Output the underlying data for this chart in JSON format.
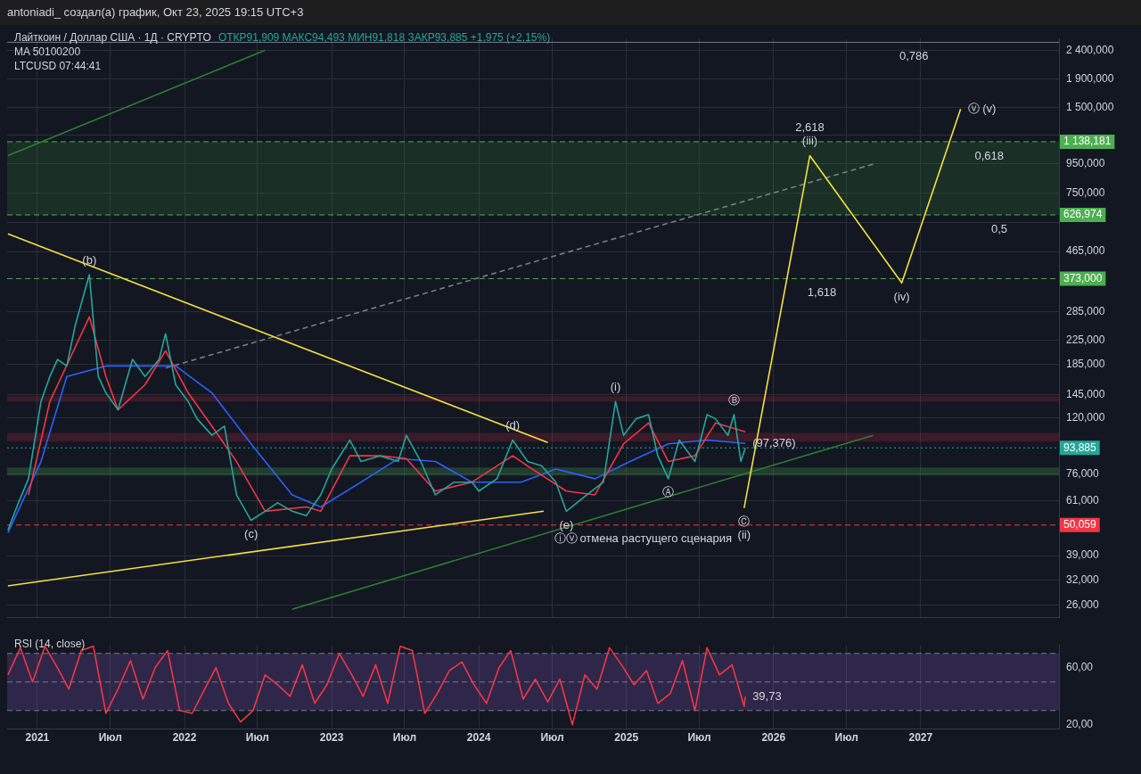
{
  "chart_data": [
    {
      "type": "line",
      "title": "Лайткоин / Доллар США · 1Д · CRYPTO",
      "subtitle": "ОТКР91,909  МАКС94,493  МИН91,818  ЗАКР93,885  +1,975 (+2,15%)",
      "log": "y",
      "grid": true,
      "legend": false,
      "marker": "none",
      "tick_labels": "y",
      "annotations": [
        "antoniadi_ создал(а) график, Окт 23, 2025 19:15 UTC+3",
        "MA 50100200",
        "LTCUSD 07:44:41",
        {
          "text": "(b)",
          "x": "2021-05-10",
          "y": 385
        },
        {
          "text": "(c)",
          "x": "2022-06-15",
          "y": 52
        },
        {
          "text": "(d)",
          "x": "2024-03-25",
          "y": 100
        },
        {
          "text": "(e)",
          "x": "2024-08-05",
          "y": 56
        },
        {
          "text": "ⓘⓥ",
          "x": "2024-08-05",
          "y": 56
        },
        {
          "text": "(i)",
          "x": "2024-12-05",
          "y": 137
        },
        {
          "text": "Ⓐ",
          "x": "2025-04-15",
          "y": 73
        },
        {
          "text": "Ⓑ",
          "x": "2025-09-25",
          "y": 123
        },
        {
          "text": "Ⓒ",
          "x": "2025-10-20",
          "y": 57.5
        },
        {
          "text": "(ii)",
          "x": "2025-10-20",
          "y": 57.5
        },
        {
          "text": "отмена растущего сценария",
          "x": "2025-03-15",
          "y": 50.059
        },
        {
          "text": "(97,376)",
          "x": "2025-10-23",
          "y": 97.376
        },
        {
          "text": "(iii)",
          "x": "2026-04-01",
          "y": 1016
        },
        {
          "text": "(iv)",
          "x": "2026-11-15",
          "y": 360
        },
        {
          "text": "ⓥ (v)",
          "x": "2027-04-10",
          "y": 1486
        },
        {
          "text": "0,786",
          "x": "2026-12-15",
          "y": 2560
        },
        {
          "text": "0,618",
          "x": "2027-06-20",
          "y": 1138.181
        },
        {
          "text": "0,5",
          "x": "2027-07-15",
          "y": 626.974
        },
        {
          "text": "2,618",
          "x": "2026-04-01",
          "y": 1016
        },
        {
          "text": "1,618",
          "x": "2026-05-01",
          "y": 373
        }
      ],
      "xlim": [
        "2020-10-18",
        "2027-12-10"
      ],
      "xticks": [
        {
          "value": "2021-01-01",
          "label": null
        },
        {
          "value": "2021-07-01",
          "label": null
        },
        {
          "value": "2022-01-01",
          "label": null
        },
        {
          "value": "2022-07-01",
          "label": null
        },
        {
          "value": "2023-01-01",
          "label": null
        },
        {
          "value": "2023-07-01",
          "label": null
        },
        {
          "value": "2024-01-01",
          "label": null
        },
        {
          "value": "2024-07-01",
          "label": null
        },
        {
          "value": "2025-01-01",
          "label": null
        },
        {
          "value": "2025-07-01",
          "label": null
        },
        {
          "value": "2026-01-01",
          "label": null
        },
        {
          "value": "2026-07-01",
          "label": null
        },
        {
          "value": "2027-01-01",
          "label": null
        }
      ],
      "ylim": [
        23.5,
        2640
      ],
      "yticks": [
        {
          "value": 2400,
          "label": "2 400,000"
        },
        {
          "value": 1900,
          "label": "1 900,000"
        },
        {
          "value": 1500,
          "label": "1 500,000"
        },
        {
          "value": 1200,
          "label": null
        },
        {
          "value": 950,
          "label": "950,000"
        },
        {
          "value": 750,
          "label": "750,000"
        },
        {
          "value": 590,
          "label": null
        },
        {
          "value": 465,
          "label": "465,000"
        },
        {
          "value": 285,
          "label": "285,000"
        },
        {
          "value": 225,
          "label": "225,000"
        },
        {
          "value": 185,
          "label": "185,000"
        },
        {
          "value": 145,
          "label": "145,000"
        },
        {
          "value": 120,
          "label": "120,000"
        },
        {
          "value": 76,
          "label": "76,000"
        },
        {
          "value": 61,
          "label": "61,000"
        },
        {
          "value": 39,
          "label": "39,000"
        },
        {
          "value": 32,
          "label": "32,000"
        },
        {
          "value": 26,
          "label": "26,000"
        }
      ],
      "ref_lines": [
        {
          "axis": "y",
          "value": 2560,
          "color": "#787b86",
          "line_style": "solid"
        },
        {
          "axis": "y",
          "value": 1138.181,
          "label": "1 138,181",
          "color": "#4caf50",
          "line_style": "dashed"
        },
        {
          "axis": "y",
          "value": 626.974,
          "label": "626,974",
          "color": "#4caf50",
          "line_style": "dashed"
        },
        {
          "axis": "y",
          "value": 373,
          "label": "373,000",
          "color": "#4caf50",
          "line_style": "dashed"
        },
        {
          "axis": "y",
          "value": 93.885,
          "label": "93,885",
          "color": "#26a69a",
          "line_style": "dotted"
        },
        {
          "axis": "y",
          "value": 50.059,
          "label": "50,059",
          "color": "#f23645",
          "line_style": "dashed"
        }
      ],
      "bands": [
        {
          "axis": "y",
          "from": 626.974,
          "to": 1138.181,
          "color": "#2e7d32"
        },
        {
          "axis": "y",
          "from": 137,
          "to": 143,
          "color": "#b2283a"
        },
        {
          "axis": "y",
          "from": 99,
          "to": 106,
          "color": "#b2283a"
        },
        {
          "axis": "y",
          "from": 75,
          "to": 80,
          "color": "#4caf50"
        }
      ],
      "series": [
        {
          "color": "#26a69a",
          "x": [
            "2020-10-20",
            "2020-11-15",
            "2020-12-10",
            "2021-01-10",
            "2021-02-01",
            "2021-02-20",
            "2021-03-15",
            "2021-04-05",
            "2021-05-10",
            "2021-06-01",
            "2021-06-20",
            "2021-07-20",
            "2021-08-25",
            "2021-09-25",
            "2021-10-30",
            "2021-11-15",
            "2021-12-10",
            "2022-01-10",
            "2022-02-01",
            "2022-03-10",
            "2022-04-10",
            "2022-05-10",
            "2022-06-15",
            "2022-07-20",
            "2022-08-20",
            "2022-09-25",
            "2022-10-30",
            "2022-12-05",
            "2023-01-01",
            "2023-02-15",
            "2023-03-15",
            "2023-05-01",
            "2023-06-15",
            "2023-07-05",
            "2023-08-10",
            "2023-09-15",
            "2023-11-01",
            "2023-12-15",
            "2024-01-01",
            "2024-02-15",
            "2024-03-25",
            "2024-05-01",
            "2024-06-05",
            "2024-07-10",
            "2024-08-05",
            "2024-09-25",
            "2024-11-05",
            "2024-12-05",
            "2024-12-25",
            "2025-01-25",
            "2025-02-25",
            "2025-03-20",
            "2025-04-15",
            "2025-05-12",
            "2025-06-20",
            "2025-07-20",
            "2025-08-10",
            "2025-09-10",
            "2025-09-25",
            "2025-10-12",
            "2025-10-23"
          ],
          "values": [
            48,
            60,
            73,
            137,
            168,
            193,
            183,
            255,
            385,
            168,
            147,
            128,
            193,
            168,
            193,
            238,
            157,
            137,
            119,
            104,
            112,
            64,
            52,
            56,
            60,
            56,
            54,
            64,
            79,
            100,
            84,
            88,
            84,
            104,
            84,
            64,
            71,
            71,
            66,
            73,
            100,
            84,
            81,
            71,
            56,
            64,
            71,
            137,
            104,
            119,
            123,
            88,
            73,
            100,
            84,
            123,
            119,
            104,
            123,
            84,
            93.885
          ]
        },
        {
          "color": "#f23645",
          "x": [
            "2020-12-10",
            "2021-02-01",
            "2021-05-10",
            "2021-06-20",
            "2021-07-20",
            "2021-09-25",
            "2021-11-15",
            "2022-01-10",
            "2022-03-10",
            "2022-05-10",
            "2022-07-20",
            "2022-10-30",
            "2022-12-05",
            "2023-02-15",
            "2023-05-01",
            "2023-07-05",
            "2023-09-15",
            "2023-12-15",
            "2024-03-25",
            "2024-05-01",
            "2024-08-05",
            "2024-10-15",
            "2024-12-25",
            "2025-02-25",
            "2025-04-15",
            "2025-06-20",
            "2025-08-10",
            "2025-10-23"
          ],
          "values": [
            64,
            137,
            273,
            168,
            128,
            157,
            207,
            147,
            112,
            84,
            56,
            58,
            56,
            88,
            88,
            86,
            66,
            71,
            88,
            81,
            66,
            64,
            97,
            115,
            84,
            88,
            115,
            107
          ]
        },
        {
          "color": "#2962ff",
          "x": [
            "2020-10-20",
            "2021-01-10",
            "2021-03-15",
            "2021-06-20",
            "2021-09-25",
            "2021-12-10",
            "2022-03-10",
            "2022-06-15",
            "2022-09-25",
            "2022-12-05",
            "2023-03-15",
            "2023-06-15",
            "2023-09-15",
            "2023-12-15",
            "2024-04-15",
            "2024-07-10",
            "2024-10-15",
            "2025-01-10",
            "2025-04-15",
            "2025-07-20",
            "2025-10-23"
          ],
          "values": [
            47,
            84,
            168,
            183,
            183,
            183,
            147,
            97,
            64,
            58,
            71,
            86,
            84,
            71,
            71,
            79,
            73,
            84,
            97,
            100,
            97.376
          ]
        },
        {
          "color": "#f5e042",
          "x": [
            "2025-10-20",
            "2026-04-01",
            "2026-11-15",
            "2027-04-10"
          ],
          "values": [
            57.5,
            1016,
            360,
            1486
          ]
        },
        {
          "color": "#f5e042",
          "x": [
            "2020-10-20",
            "2024-06-20"
          ],
          "values": [
            537,
            98
          ]
        },
        {
          "color": "#f5e042",
          "x": [
            "2020-10-20",
            "2024-06-10"
          ],
          "values": [
            30.5,
            56
          ]
        },
        {
          "color": "#2e7d32",
          "x": [
            "2022-09-25",
            "2026-09-05"
          ],
          "values": [
            25.2,
            104
          ]
        },
        {
          "color": "#2e7d32",
          "x": [
            "2020-10-20",
            "2022-07-20"
          ],
          "values": [
            1016,
            2400
          ]
        },
        {
          "color": "#787b86",
          "line_style": "dashed",
          "x": [
            "2021-11-15",
            "2026-09-05"
          ],
          "values": [
            180,
            948
          ]
        }
      ]
    },
    {
      "type": "line",
      "title": "RSI (14, close)",
      "grid": "x",
      "legend": false,
      "marker": "none",
      "annotations": [
        {
          "text": "39,73",
          "x": "2025-10-23",
          "y": 39.73
        }
      ],
      "xlim": [
        "2020-10-18",
        "2027-12-10"
      ],
      "xticks": [
        {
          "value": "2021-01-01",
          "label": "2021"
        },
        {
          "value": "2021-07-01",
          "label": "Июл"
        },
        {
          "value": "2022-01-01",
          "label": "2022"
        },
        {
          "value": "2022-07-01",
          "label": "Июл"
        },
        {
          "value": "2023-01-01",
          "label": "2023"
        },
        {
          "value": "2023-07-01",
          "label": "Июл"
        },
        {
          "value": "2024-01-01",
          "label": "2024"
        },
        {
          "value": "2024-07-01",
          "label": "Июл"
        },
        {
          "value": "2025-01-01",
          "label": "2025"
        },
        {
          "value": "2025-07-01",
          "label": "Июл"
        },
        {
          "value": "2026-01-01",
          "label": "2026"
        },
        {
          "value": "2026-07-01",
          "label": "Июл"
        },
        {
          "value": "2027-01-01",
          "label": "2027"
        }
      ],
      "ylim": [
        17,
        76
      ],
      "yticks": [
        {
          "value": 60,
          "label": "60,00"
        },
        {
          "value": 20,
          "label": "20,00"
        }
      ],
      "ref_lines": [
        {
          "axis": "y",
          "value": 70,
          "color": "#787b86",
          "line_style": "dashed"
        },
        {
          "axis": "y",
          "value": 50,
          "color": "#787b86",
          "line_style": "dashed"
        },
        {
          "axis": "y",
          "value": 30,
          "color": "#787b86",
          "line_style": "dashed"
        }
      ],
      "bands": [
        {
          "axis": "y",
          "from": 30,
          "to": 70,
          "color": "#7e57c2"
        }
      ],
      "series": [
        {
          "color": "#f23645",
          "x": [
            "2020-10-20",
            "2020-11-20",
            "2020-12-20",
            "2021-01-20",
            "2021-02-20",
            "2021-03-20",
            "2021-04-20",
            "2021-05-20",
            "2021-06-20",
            "2021-07-20",
            "2021-08-20",
            "2021-09-20",
            "2021-10-20",
            "2021-11-20",
            "2021-12-20",
            "2022-01-20",
            "2022-02-20",
            "2022-03-20",
            "2022-04-20",
            "2022-05-20",
            "2022-06-20",
            "2022-07-20",
            "2022-08-20",
            "2022-09-20",
            "2022-10-20",
            "2022-11-20",
            "2022-12-20",
            "2023-01-20",
            "2023-02-20",
            "2023-03-20",
            "2023-04-20",
            "2023-05-20",
            "2023-06-20",
            "2023-07-20",
            "2023-08-20",
            "2023-09-20",
            "2023-10-20",
            "2023-11-20",
            "2023-12-20",
            "2024-01-20",
            "2024-02-20",
            "2024-03-20",
            "2024-04-20",
            "2024-05-20",
            "2024-06-20",
            "2024-07-20",
            "2024-08-20",
            "2024-09-20",
            "2024-10-20",
            "2024-11-20",
            "2024-12-20",
            "2025-01-20",
            "2025-02-20",
            "2025-03-20",
            "2025-04-20",
            "2025-05-20",
            "2025-06-20",
            "2025-07-20",
            "2025-08-20",
            "2025-09-20",
            "2025-10-20",
            "2025-10-23"
          ],
          "values": [
            55,
            74,
            50,
            75,
            60,
            45,
            72,
            75,
            28,
            45,
            65,
            38,
            60,
            72,
            30,
            28,
            45,
            60,
            35,
            22,
            30,
            55,
            48,
            40,
            62,
            35,
            48,
            70,
            55,
            40,
            62,
            35,
            75,
            72,
            28,
            42,
            58,
            64,
            48,
            35,
            60,
            72,
            38,
            52,
            36,
            52,
            20,
            55,
            45,
            74,
            62,
            48,
            58,
            35,
            42,
            65,
            30,
            74,
            55,
            62,
            33,
            39.73
          ]
        }
      ]
    }
  ]
}
